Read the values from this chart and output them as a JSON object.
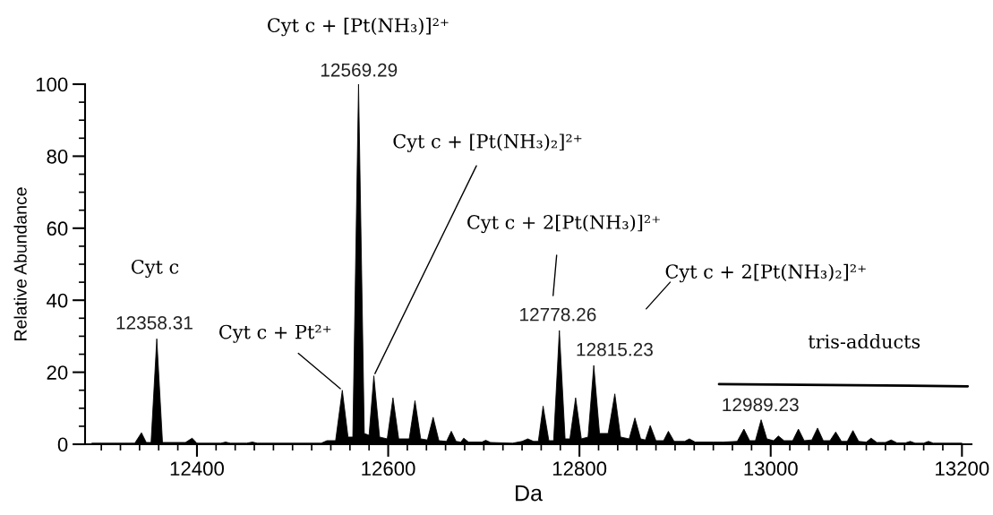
{
  "chart_data": {
    "type": "area",
    "xlabel": "Da",
    "ylabel": "Relative Abundance",
    "xlim": [
      12283,
      13210
    ],
    "ylim": [
      0,
      100
    ],
    "xticks": [
      12400,
      12600,
      12800,
      13000,
      13200,
      {
        "value": 12300,
        "label": null
      },
      {
        "value": 12320,
        "label": null
      },
      {
        "value": 12340,
        "label": null
      },
      {
        "value": 12360,
        "label": null
      },
      {
        "value": 12380,
        "label": null
      },
      {
        "value": 12420,
        "label": null
      },
      {
        "value": 12440,
        "label": null
      },
      {
        "value": 12460,
        "label": null
      },
      {
        "value": 12480,
        "label": null
      },
      {
        "value": 12500,
        "label": null
      },
      {
        "value": 12520,
        "label": null
      },
      {
        "value": 12540,
        "label": null
      },
      {
        "value": 12560,
        "label": null
      },
      {
        "value": 12580,
        "label": null
      },
      {
        "value": 12620,
        "label": null
      },
      {
        "value": 12640,
        "label": null
      },
      {
        "value": 12660,
        "label": null
      },
      {
        "value": 12680,
        "label": null
      },
      {
        "value": 12700,
        "label": null
      },
      {
        "value": 12720,
        "label": null
      },
      {
        "value": 12740,
        "label": null
      },
      {
        "value": 12760,
        "label": null
      },
      {
        "value": 12780,
        "label": null
      },
      {
        "value": 12820,
        "label": null
      },
      {
        "value": 12840,
        "label": null
      },
      {
        "value": 12860,
        "label": null
      },
      {
        "value": 12880,
        "label": null
      },
      {
        "value": 12900,
        "label": null
      },
      {
        "value": 12920,
        "label": null
      },
      {
        "value": 12940,
        "label": null
      },
      {
        "value": 12960,
        "label": null
      },
      {
        "value": 12980,
        "label": null
      },
      {
        "value": 13020,
        "label": null
      },
      {
        "value": 13040,
        "label": null
      },
      {
        "value": 13060,
        "label": null
      },
      {
        "value": 13080,
        "label": null
      },
      {
        "value": 13100,
        "label": null
      },
      {
        "value": 13120,
        "label": null
      },
      {
        "value": 13140,
        "label": null
      },
      {
        "value": 13160,
        "label": null
      },
      {
        "value": 13180,
        "label": null
      }
    ],
    "yticks": [
      0,
      20,
      40,
      60,
      80,
      100,
      {
        "value": 5,
        "label": null
      },
      {
        "value": 10,
        "label": null
      },
      {
        "value": 15,
        "label": null
      },
      {
        "value": 25,
        "label": null
      },
      {
        "value": 30,
        "label": null
      },
      {
        "value": 35,
        "label": null
      },
      {
        "value": 45,
        "label": null
      },
      {
        "value": 50,
        "label": null
      },
      {
        "value": 55,
        "label": null
      },
      {
        "value": 65,
        "label": null
      },
      {
        "value": 70,
        "label": null
      },
      {
        "value": 75,
        "label": null
      },
      {
        "value": 85,
        "label": null
      },
      {
        "value": 90,
        "label": null
      },
      {
        "value": 95,
        "label": null
      }
    ],
    "series": [
      {
        "type": "area",
        "color": "#000000",
        "x": [
          12290,
          12335,
          12342,
          12347,
          12352,
          12358,
          12364,
          12388,
          12395,
          12400,
          12425,
          12430,
          12435,
          12452,
          12458,
          12463,
          12530,
          12536,
          12545,
          12552,
          12558,
          12563,
          12569,
          12575,
          12580,
          12585,
          12591,
          12599,
          12605,
          12611,
          12622,
          12628,
          12634,
          12641,
          12647,
          12653,
          12661,
          12666,
          12671,
          12676,
          12679,
          12684,
          12698,
          12702,
          12707,
          12730,
          12740,
          12746,
          12752,
          12757,
          12762,
          12768,
          12773,
          12779,
          12785,
          12790,
          12796,
          12802,
          12809,
          12815,
          12821,
          12830,
          12837,
          12843,
          12852,
          12858,
          12864,
          12869,
          12874,
          12880,
          12888,
          12893,
          12899,
          12910,
          12915,
          12921,
          12940,
          12950,
          12965,
          12972,
          12978,
          12984,
          12990,
          12996,
          13003,
          13008,
          13014,
          13023,
          13029,
          13035,
          13043,
          13049,
          13055,
          13062,
          13068,
          13074,
          13080,
          13086,
          13092,
          13100,
          13105,
          13111,
          13120,
          13126,
          13132,
          13141,
          13146,
          13151,
          13160,
          13165,
          13170,
          13200
        ],
        "values": [
          0.3,
          0.3,
          3.2,
          0.5,
          0.5,
          29.3,
          0.5,
          0.5,
          1.7,
          0.3,
          0.3,
          0.6,
          0.3,
          0.3,
          0.6,
          0.3,
          0.3,
          1.0,
          1.0,
          15.0,
          2.0,
          2.0,
          100,
          3.0,
          2.5,
          19.0,
          2.0,
          1.5,
          12.9,
          1.5,
          1.5,
          12.1,
          1.5,
          1.2,
          7.5,
          1.0,
          0.8,
          3.6,
          0.8,
          0.6,
          1.7,
          0.6,
          0.6,
          1.1,
          0.5,
          0.3,
          0.8,
          1.5,
          0.8,
          0.8,
          10.6,
          1.0,
          1.0,
          31.6,
          1.5,
          1.5,
          12.9,
          1.5,
          2.0,
          21.9,
          3.0,
          3.0,
          14.0,
          2.0,
          1.5,
          7.3,
          1.5,
          1.2,
          5.2,
          1.0,
          1.0,
          3.6,
          0.8,
          0.8,
          1.5,
          0.6,
          0.6,
          0.6,
          0.8,
          4.2,
          1.0,
          1.0,
          6.8,
          1.5,
          1.0,
          2.3,
          1.0,
          1.0,
          4.2,
          1.0,
          1.2,
          4.5,
          1.0,
          1.0,
          3.4,
          0.8,
          0.8,
          3.8,
          0.8,
          0.6,
          1.7,
          0.5,
          0.5,
          1.2,
          0.4,
          0.4,
          0.8,
          0.3,
          0.3,
          0.8,
          0.3,
          0.3
        ]
      },
      {
        "type": "line",
        "color": "#000000",
        "x": [
          12946,
          13206
        ],
        "values": [
          16.7,
          16.1
        ]
      }
    ],
    "annotations": [
      "Cyt c",
      {
        "text": "12358.31",
        "x": 12358.31,
        "y": 29.3
      },
      {
        "text": "Cyt c + Pt²⁺",
        "x": 12552,
        "y": 15.0
      },
      {
        "text": "12569.29",
        "x": 12569.29,
        "y": 100
      },
      "Cyt c + [Pt(NH₃)]²⁺",
      {
        "text": "Cyt c + [Pt(NH₃)₂]²⁺",
        "x": 12585,
        "y": 19.0
      },
      {
        "text": "12778.26",
        "x": 12778.26,
        "y": 31.6
      },
      "Cyt c + 2[Pt(NH₃)]²⁺",
      {
        "text": "12815.23",
        "x": 12815.23,
        "y": 21.9
      },
      "Cyt c + 2[Pt(NH₃)₂]²⁺",
      {
        "text": "12989.23",
        "x": 12989.23,
        "y": 6.8
      },
      "tris-adducts"
    ]
  }
}
